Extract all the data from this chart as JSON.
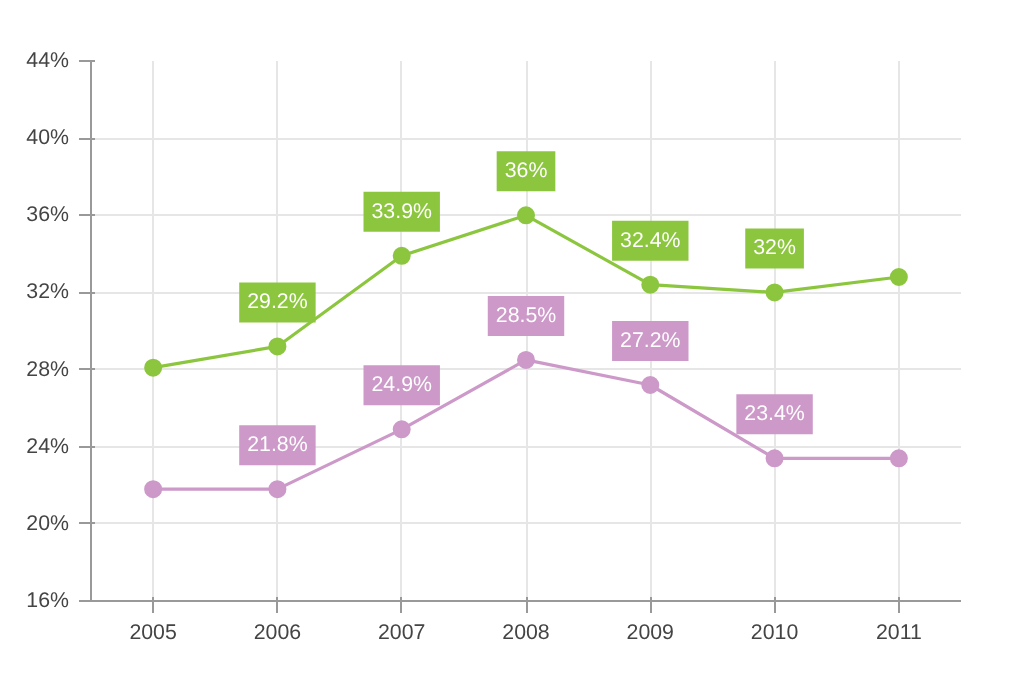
{
  "chart_data": {
    "type": "line",
    "categories": [
      "2005",
      "2006",
      "2007",
      "2008",
      "2009",
      "2010",
      "2011"
    ],
    "series": [
      {
        "color": "#8cc63f",
        "values": [
          28.1,
          29.2,
          33.9,
          36,
          32.4,
          32,
          32.8
        ],
        "value_labels": [
          null,
          "29.2%",
          "33.9%",
          "36%",
          "32.4%",
          "32%",
          null
        ]
      },
      {
        "color": "#cc99c9",
        "values": [
          21.8,
          21.8,
          24.9,
          28.5,
          27.2,
          23.4,
          23.4
        ],
        "value_labels": [
          null,
          "21.8%",
          "24.9%",
          "28.5%",
          "27.2%",
          "23.4%",
          null
        ]
      }
    ],
    "ylim": [
      16,
      44
    ],
    "yticks": [
      {
        "value": 16,
        "label": "16%"
      },
      {
        "value": 20,
        "label": "20%"
      },
      {
        "value": 24,
        "label": "24%"
      },
      {
        "value": 28,
        "label": "28%"
      },
      {
        "value": 32,
        "label": "32%"
      },
      {
        "value": 36,
        "label": "36%"
      },
      {
        "value": 40,
        "label": "40%"
      },
      {
        "value": 44,
        "label": "44%"
      }
    ],
    "grid": true,
    "marker": "circle",
    "line_style": "solid"
  }
}
